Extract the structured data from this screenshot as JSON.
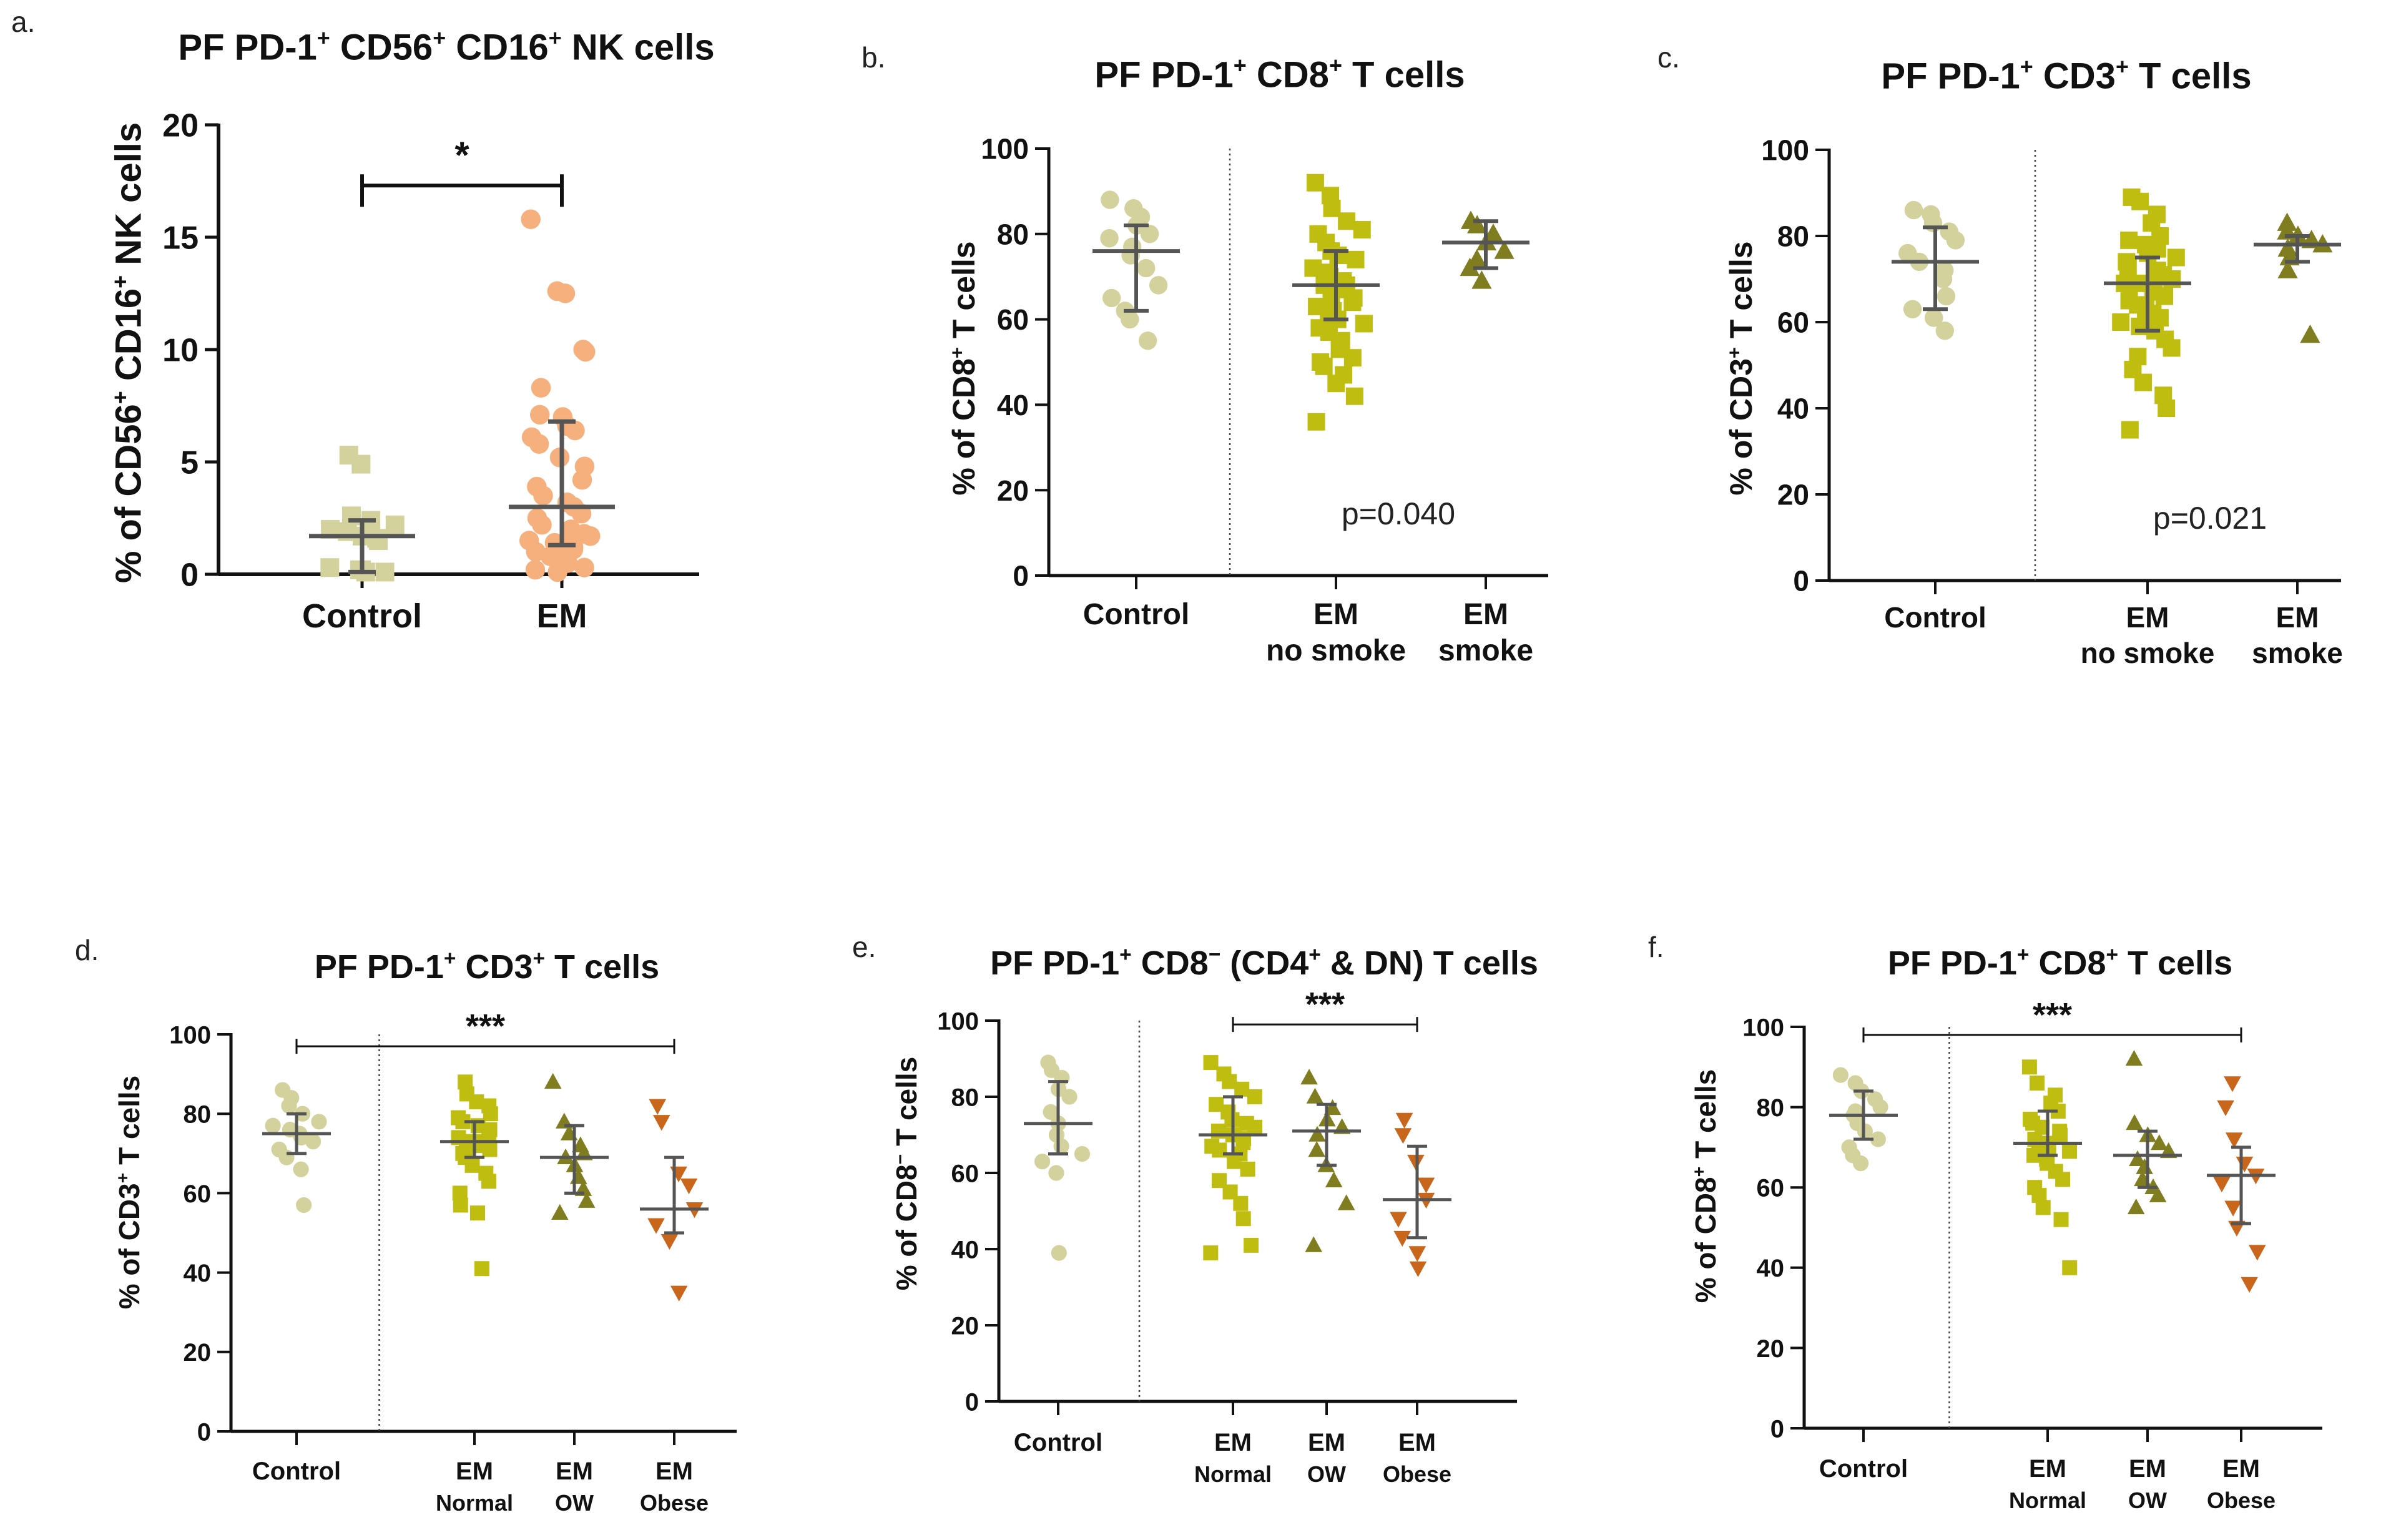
{
  "colors": {
    "control": "#D4D29C",
    "em": "#F6B07E",
    "em_no_smoke": "#BFBE10",
    "em_smoke": "#7F7D1F",
    "em_normal": "#BFBE10",
    "em_ow": "#7F7D1F",
    "em_obese": "#C8661C",
    "summary": "#555555",
    "axis": "#111111"
  },
  "chart_data": [
    {
      "id": "a",
      "panel_label": "a.",
      "type": "scatter",
      "title_parts": [
        "PF PD-1",
        "+",
        " CD56",
        "+",
        " CD16",
        "+",
        " NK cells"
      ],
      "ylabel_parts": [
        "% of CD56",
        "+",
        " CD16",
        "+",
        " NK cells"
      ],
      "ylim": [
        0,
        20
      ],
      "yticks": [
        0,
        5,
        10,
        15,
        20
      ],
      "ytick_labels": [
        "0",
        "5",
        "10",
        "15",
        "20"
      ],
      "categories": [
        {
          "line1": "Control",
          "line2": ""
        },
        {
          "line1": "EM",
          "line2": ""
        }
      ],
      "divider_after": null,
      "annotation": "",
      "significance": {
        "from": 0,
        "to": 1,
        "label": "*",
        "y": 17.3,
        "style": "bracket"
      },
      "series": [
        {
          "name": "Control",
          "color_key": "control",
          "marker": "square",
          "median": 1.7,
          "lower": 0.1,
          "upper": 2.4,
          "values": [
            5.3,
            4.9,
            2.6,
            2.4,
            2.2,
            2.0,
            1.9,
            1.7,
            1.6,
            1.5,
            0.3,
            0.2,
            0.2,
            0.1,
            0.1
          ]
        },
        {
          "name": "EM",
          "color_key": "em",
          "marker": "circle",
          "median": 3.0,
          "lower": 1.3,
          "upper": 6.8,
          "values": [
            15.8,
            12.6,
            12.5,
            10.0,
            9.9,
            8.3,
            7.1,
            7.0,
            6.6,
            6.4,
            6.1,
            5.8,
            5.2,
            4.8,
            4.2,
            3.9,
            3.5,
            3.2,
            3.0,
            2.7,
            2.5,
            2.2,
            2.0,
            1.8,
            1.7,
            1.5,
            1.4,
            1.3,
            1.2,
            1.1,
            1.0,
            0.8,
            0.6,
            0.5,
            0.3,
            0.2,
            0.1
          ]
        }
      ]
    },
    {
      "id": "b",
      "panel_label": "b.",
      "type": "scatter",
      "title_parts": [
        "PF PD-1",
        "+",
        " CD8",
        "+",
        " T cells"
      ],
      "ylabel_parts": [
        "% of CD8",
        "+",
        " T cells"
      ],
      "ylim": [
        0,
        100
      ],
      "yticks": [
        0,
        20,
        40,
        60,
        80,
        100
      ],
      "ytick_labels": [
        "0",
        "20",
        "40",
        "60",
        "80",
        "100"
      ],
      "categories": [
        {
          "line1": "Control",
          "line2": ""
        },
        {
          "line1": "EM",
          "line2": "no smoke"
        },
        {
          "line1": "EM",
          "line2": "smoke"
        }
      ],
      "divider_after": 0,
      "annotation": "p=0.040",
      "annotation_y": 12,
      "significance": null,
      "series": [
        {
          "name": "Control",
          "color_key": "control",
          "marker": "circle",
          "median": 76,
          "lower": 62,
          "upper": 82,
          "values": [
            88,
            86,
            84,
            82,
            80,
            79,
            77,
            75,
            72,
            68,
            65,
            62,
            60,
            55
          ]
        },
        {
          "name": "EM no smoke",
          "color_key": "em_no_smoke",
          "marker": "square",
          "median": 68,
          "lower": 60,
          "upper": 76,
          "values": [
            92,
            89,
            86,
            83,
            81,
            80,
            78,
            76,
            75,
            74,
            72,
            71,
            70,
            69,
            68,
            68,
            67,
            66,
            65,
            64,
            63,
            62,
            61,
            60,
            59,
            58,
            57,
            55,
            53,
            51,
            50,
            49,
            47,
            45,
            42,
            36
          ]
        },
        {
          "name": "EM smoke",
          "color_key": "em_smoke",
          "marker": "triangle-up",
          "median": 78,
          "lower": 72,
          "upper": 83,
          "values": [
            83,
            82,
            80,
            78,
            76,
            74,
            72,
            69
          ]
        }
      ]
    },
    {
      "id": "c",
      "panel_label": "c.",
      "type": "scatter",
      "title_parts": [
        "PF PD-1",
        "+",
        " CD3",
        "+",
        " T cells"
      ],
      "ylabel_parts": [
        "% of CD3",
        "+",
        " T cells"
      ],
      "ylim": [
        0,
        100
      ],
      "yticks": [
        0,
        20,
        40,
        60,
        80,
        100
      ],
      "ytick_labels": [
        "0",
        "20",
        "40",
        "60",
        "80",
        "100"
      ],
      "categories": [
        {
          "line1": "Control",
          "line2": ""
        },
        {
          "line1": "EM",
          "line2": "no smoke"
        },
        {
          "line1": "EM",
          "line2": "smoke"
        }
      ],
      "divider_after": 0,
      "annotation": "p=0.021",
      "annotation_y": 12,
      "significance": null,
      "series": [
        {
          "name": "Control",
          "color_key": "control",
          "marker": "circle",
          "median": 74,
          "lower": 63,
          "upper": 82,
          "values": [
            86,
            85,
            83,
            81,
            79,
            76,
            74,
            72,
            70,
            66,
            63,
            61,
            58
          ]
        },
        {
          "name": "EM no smoke",
          "color_key": "em_no_smoke",
          "marker": "square",
          "median": 69,
          "lower": 58,
          "upper": 75,
          "values": [
            89,
            88,
            85,
            83,
            80,
            79,
            78,
            77,
            76,
            75,
            74,
            73,
            72,
            71,
            70,
            69,
            69,
            68,
            67,
            66,
            65,
            64,
            63,
            62,
            61,
            60,
            59,
            58,
            56,
            54,
            52,
            49,
            46,
            43,
            40,
            35
          ]
        },
        {
          "name": "EM smoke",
          "color_key": "em_smoke",
          "marker": "triangle-up",
          "median": 78,
          "lower": 74,
          "upper": 80,
          "values": [
            83,
            81,
            80,
            79,
            78,
            77,
            75,
            72,
            57
          ]
        }
      ]
    },
    {
      "id": "d",
      "panel_label": "d.",
      "type": "scatter",
      "title_parts": [
        "PF PD-1",
        "+",
        " CD3",
        "+",
        " T cells"
      ],
      "ylabel_parts": [
        "% of CD3",
        "+",
        " T cells"
      ],
      "ylim": [
        0,
        100
      ],
      "yticks": [
        0,
        20,
        40,
        60,
        80,
        100
      ],
      "ytick_labels": [
        "0",
        "20",
        "40",
        "60",
        "80",
        "100"
      ],
      "categories": [
        {
          "line1": "Control",
          "line2": ""
        },
        {
          "line1": "EM",
          "line2": "Normal"
        },
        {
          "line1": "EM",
          "line2": "OW"
        },
        {
          "line1": "EM",
          "line2": "Obese"
        }
      ],
      "divider_after": 0,
      "annotation": "",
      "significance": {
        "from": 0,
        "to": 3,
        "label": "***",
        "y": 97,
        "style": "line"
      },
      "series": [
        {
          "name": "Control",
          "color_key": "control",
          "marker": "circle",
          "median": 75,
          "lower": 70,
          "upper": 80,
          "values": [
            86,
            84,
            82,
            80,
            78,
            77,
            76,
            75,
            74,
            73,
            71,
            69,
            66,
            57
          ]
        },
        {
          "name": "EM Normal",
          "color_key": "em_normal",
          "marker": "square",
          "median": 73,
          "lower": 69,
          "upper": 78,
          "values": [
            88,
            85,
            83,
            82,
            80,
            79,
            78,
            77,
            76,
            75,
            74,
            73,
            73,
            72,
            71,
            70,
            69,
            67,
            65,
            63,
            60,
            57,
            55,
            41
          ]
        },
        {
          "name": "EM OW",
          "color_key": "em_ow",
          "marker": "triangle-up",
          "median": 69,
          "lower": 60,
          "upper": 77,
          "values": [
            88,
            78,
            75,
            72,
            70,
            69,
            67,
            64,
            61,
            58,
            55
          ]
        },
        {
          "name": "EM Obese",
          "color_key": "em_obese",
          "marker": "triangle-down",
          "median": 56,
          "lower": 50,
          "upper": 69,
          "values": [
            82,
            78,
            65,
            62,
            56,
            52,
            48,
            35
          ]
        }
      ]
    },
    {
      "id": "e",
      "panel_label": "e.",
      "type": "scatter",
      "title_parts": [
        "PF PD-1",
        "+",
        " CD8",
        "−",
        " (CD4",
        "+",
        " & DN) T cells"
      ],
      "ylabel_parts": [
        "% of CD8",
        "−",
        " T cells"
      ],
      "ylim": [
        0,
        100
      ],
      "yticks": [
        0,
        20,
        40,
        60,
        80,
        100
      ],
      "ytick_labels": [
        "0",
        "20",
        "40",
        "60",
        "80",
        "100"
      ],
      "categories": [
        {
          "line1": "Control",
          "line2": ""
        },
        {
          "line1": "EM",
          "line2": "Normal"
        },
        {
          "line1": "EM",
          "line2": "OW"
        },
        {
          "line1": "EM",
          "line2": "Obese"
        }
      ],
      "divider_after": 0,
      "annotation": "",
      "significance": {
        "from": 1,
        "to": 3,
        "label": "***",
        "y": 99,
        "style": "line"
      },
      "series": [
        {
          "name": "Control",
          "color_key": "control",
          "marker": "circle",
          "median": 73,
          "lower": 65,
          "upper": 84,
          "values": [
            89,
            87,
            85,
            82,
            80,
            76,
            73,
            70,
            67,
            65,
            63,
            60,
            39
          ]
        },
        {
          "name": "EM Normal",
          "color_key": "em_normal",
          "marker": "square",
          "median": 70,
          "lower": 65,
          "upper": 80,
          "values": [
            89,
            86,
            84,
            82,
            80,
            78,
            76,
            74,
            73,
            72,
            71,
            70,
            70,
            69,
            68,
            67,
            66,
            65,
            63,
            61,
            58,
            55,
            52,
            48,
            41,
            39
          ]
        },
        {
          "name": "EM OW",
          "color_key": "em_ow",
          "marker": "triangle-up",
          "median": 71,
          "lower": 62,
          "upper": 78,
          "values": [
            85,
            80,
            77,
            74,
            72,
            70,
            66,
            62,
            58,
            52,
            41
          ]
        },
        {
          "name": "EM Obese",
          "color_key": "em_obese",
          "marker": "triangle-down",
          "median": 53,
          "lower": 43,
          "upper": 67,
          "values": [
            74,
            70,
            63,
            57,
            53,
            48,
            43,
            39,
            35
          ]
        }
      ]
    },
    {
      "id": "f",
      "panel_label": "f.",
      "type": "scatter",
      "title_parts": [
        "PF PD-1",
        "+",
        " CD8",
        "+",
        " T cells"
      ],
      "ylabel_parts": [
        "% of CD8",
        "+",
        " T cells"
      ],
      "ylim": [
        0,
        100
      ],
      "yticks": [
        0,
        20,
        40,
        60,
        80,
        100
      ],
      "ytick_labels": [
        "0",
        "20",
        "40",
        "60",
        "80",
        "100"
      ],
      "categories": [
        {
          "line1": "Control",
          "line2": ""
        },
        {
          "line1": "EM",
          "line2": "Normal"
        },
        {
          "line1": "EM",
          "line2": "OW"
        },
        {
          "line1": "EM",
          "line2": "Obese"
        }
      ],
      "divider_after": 0,
      "annotation": "",
      "significance": {
        "from": 0,
        "to": 3,
        "label": "***",
        "y": 98,
        "style": "line"
      },
      "series": [
        {
          "name": "Control",
          "color_key": "control",
          "marker": "circle",
          "median": 78,
          "lower": 72,
          "upper": 84,
          "values": [
            88,
            86,
            84,
            82,
            80,
            79,
            78,
            76,
            74,
            72,
            70,
            68,
            66
          ]
        },
        {
          "name": "EM Normal",
          "color_key": "em_normal",
          "marker": "square",
          "median": 71,
          "lower": 68,
          "upper": 79,
          "values": [
            90,
            86,
            83,
            81,
            79,
            77,
            76,
            75,
            74,
            73,
            72,
            71,
            71,
            70,
            69,
            68,
            67,
            66,
            64,
            62,
            60,
            58,
            55,
            52,
            40
          ]
        },
        {
          "name": "EM OW",
          "color_key": "em_ow",
          "marker": "triangle-up",
          "median": 68,
          "lower": 60,
          "upper": 74,
          "values": [
            92,
            76,
            73,
            71,
            69,
            67,
            65,
            62,
            60,
            58,
            55
          ]
        },
        {
          "name": "EM Obese",
          "color_key": "em_obese",
          "marker": "triangle-down",
          "median": 63,
          "lower": 51,
          "upper": 70,
          "values": [
            86,
            80,
            72,
            66,
            63,
            61,
            55,
            50,
            44,
            36
          ]
        }
      ]
    }
  ]
}
